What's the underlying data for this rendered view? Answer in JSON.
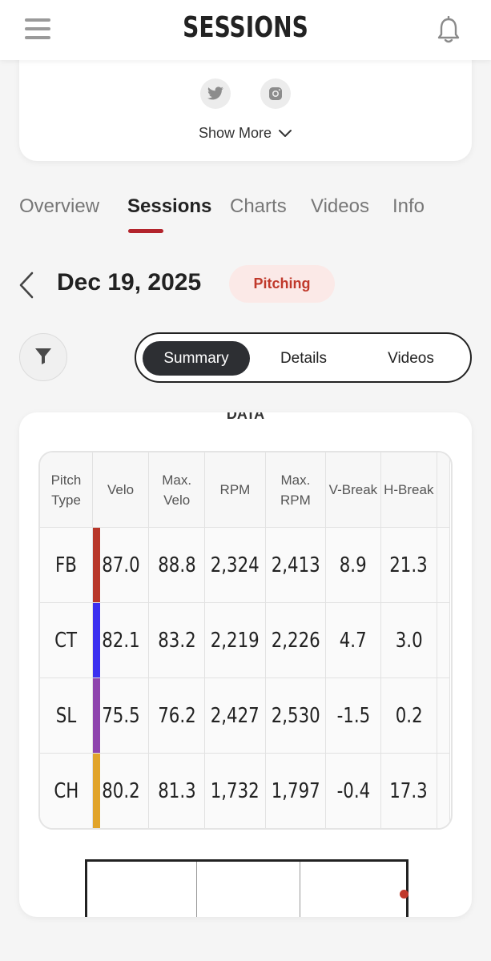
{
  "header": {
    "title": "SESSIONS"
  },
  "profile": {
    "show_more": "Show More"
  },
  "tabs": [
    {
      "label": "Overview"
    },
    {
      "label": "Sessions"
    },
    {
      "label": "Charts"
    },
    {
      "label": "Videos"
    },
    {
      "label": "Info"
    }
  ],
  "active_tab": "Sessions",
  "session": {
    "date": "Dec 19, 2025",
    "badge": "Pitching"
  },
  "segments": [
    {
      "label": "Summary"
    },
    {
      "label": "Details"
    },
    {
      "label": "Videos"
    }
  ],
  "active_segment": "Summary",
  "data_card": {
    "heading": "DATA",
    "columns": [
      "Pitch Type",
      "Velo",
      "Max. Velo",
      "RPM",
      "Max. RPM",
      "V-Break",
      "H-Break"
    ],
    "rows": [
      {
        "type": "FB",
        "color": "#b8372a",
        "cells": [
          "87.0",
          "88.8",
          "2,324",
          "2,413",
          "8.9",
          "21.3"
        ]
      },
      {
        "type": "CT",
        "color": "#3b2ff0",
        "cells": [
          "82.1",
          "83.2",
          "2,219",
          "2,226",
          "4.7",
          "3.0"
        ]
      },
      {
        "type": "SL",
        "color": "#8e44ad",
        "cells": [
          "75.5",
          "76.2",
          "2,427",
          "2,530",
          "-1.5",
          "0.2"
        ]
      },
      {
        "type": "CH",
        "color": "#e1a42b",
        "cells": [
          "80.2",
          "81.3",
          "1,732",
          "1,797",
          "-0.4",
          "17.3"
        ]
      }
    ]
  },
  "colors": {
    "accent": "#b3242c",
    "badge_bg": "#fbe9e7",
    "badge_text": "#c0392b",
    "segment_active": "#2d2f33"
  },
  "icons": [
    "menu-icon",
    "bell-icon",
    "twitter-icon",
    "instagram-icon",
    "chevron-down-icon",
    "chevron-left-icon",
    "filter-icon"
  ]
}
